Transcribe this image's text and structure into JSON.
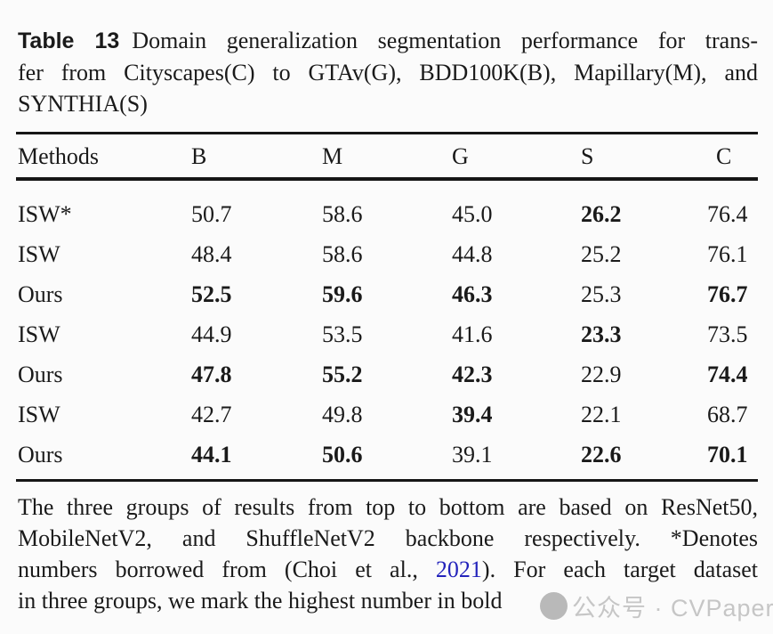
{
  "caption": {
    "tag": "Table 13",
    "line1_rest": "Domain generalization segmentation performance for trans-",
    "line2": "fer from Cityscapes(C) to GTAv(G), BDD100K(B), Mapillary(M), and",
    "line3": "SYNTHIA(S)"
  },
  "table": {
    "columns": [
      "Methods",
      "B",
      "M",
      "G",
      "S",
      "C"
    ],
    "rows": [
      {
        "method": "ISW*",
        "values": [
          "50.7",
          "58.6",
          "45.0",
          "26.2",
          "76.4"
        ],
        "bold": [
          false,
          false,
          false,
          true,
          false
        ]
      },
      {
        "method": "ISW",
        "values": [
          "48.4",
          "58.6",
          "44.8",
          "25.2",
          "76.1"
        ],
        "bold": [
          false,
          false,
          false,
          false,
          false
        ]
      },
      {
        "method": "Ours",
        "values": [
          "52.5",
          "59.6",
          "46.3",
          "25.3",
          "76.7"
        ],
        "bold": [
          true,
          true,
          true,
          false,
          true
        ]
      },
      {
        "method": "ISW",
        "values": [
          "44.9",
          "53.5",
          "41.6",
          "23.3",
          "73.5"
        ],
        "bold": [
          false,
          false,
          false,
          true,
          false
        ]
      },
      {
        "method": "Ours",
        "values": [
          "47.8",
          "55.2",
          "42.3",
          "22.9",
          "74.4"
        ],
        "bold": [
          true,
          true,
          true,
          false,
          true
        ]
      },
      {
        "method": "ISW",
        "values": [
          "42.7",
          "49.8",
          "39.4",
          "22.1",
          "68.7"
        ],
        "bold": [
          false,
          false,
          true,
          false,
          false
        ]
      },
      {
        "method": "Ours",
        "values": [
          "44.1",
          "50.6",
          "39.1",
          "22.6",
          "70.1"
        ],
        "bold": [
          true,
          true,
          false,
          true,
          true
        ]
      }
    ]
  },
  "footnote": {
    "line1": "The three groups of results from top to bottom are based on ResNet50,",
    "line2": "MobileNetV2, and ShuffleNetV2 backbone respectively. *Denotes",
    "line3_pre": "numbers borrowed from (Choi et al., ",
    "line3_link": "2021",
    "line3_post": "). For each target dataset",
    "line4": "in three groups, we mark the highest number in bold"
  },
  "watermark": {
    "text": "公众号 · CVPaper"
  },
  "colors": {
    "text": "#1a1a1a",
    "link": "#2323bb",
    "rule": "#161616",
    "watermark_text": "#c6c6c6",
    "watermark_circle": "#a9a9a9",
    "background": "#fbfbfb"
  }
}
